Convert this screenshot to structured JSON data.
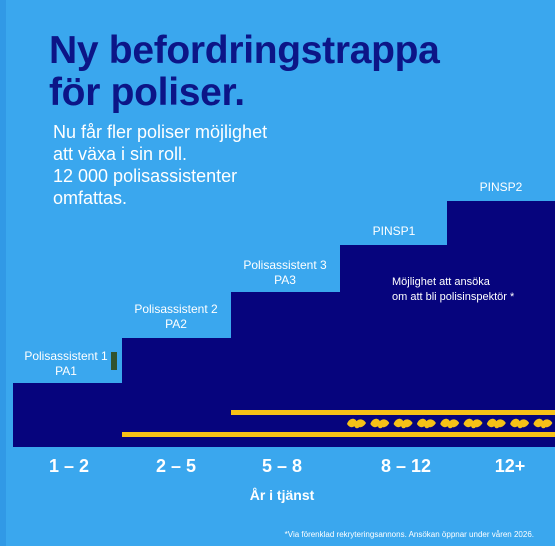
{
  "headline": {
    "line_1": "Ny befordringstrappa",
    "line_2": "för poliser."
  },
  "intro": {
    "line_1": "Nu får fler poliser möjlighet",
    "line_2": "att växa i sin roll.",
    "line_3": "12 000 polisassistenter",
    "line_4": "omfattas."
  },
  "steps": [
    {
      "title": "Polisassistent 1",
      "code": "PA1"
    },
    {
      "title": "Polisassistent 2",
      "code": "PA2"
    },
    {
      "title": "Polisassistent 3",
      "code": "PA3"
    },
    {
      "title": "PINSP1"
    },
    {
      "title": "PINSP2"
    }
  ],
  "inspector_note": {
    "line_1": "Möjlighet att ansöka",
    "line_2": "om att bli polisinspektör *"
  },
  "service_years": {
    "labels": [
      "1 – 2",
      "2 – 5",
      "5 – 8",
      "8 – 12",
      "12+"
    ],
    "title": "År i tjänst"
  },
  "footnote": "*Via förenklad rekryteringsannons. Ansökan öppnar under våren 2026.",
  "colors": {
    "background": "#3aa7ee",
    "headline": "#0c1587",
    "stairs": "#06047d",
    "rank_stripe": "#f6c117",
    "marker": "#31532e"
  },
  "decorations": {
    "emblem": "oak-leaf-emblem-icon",
    "emblem_count": 9
  }
}
